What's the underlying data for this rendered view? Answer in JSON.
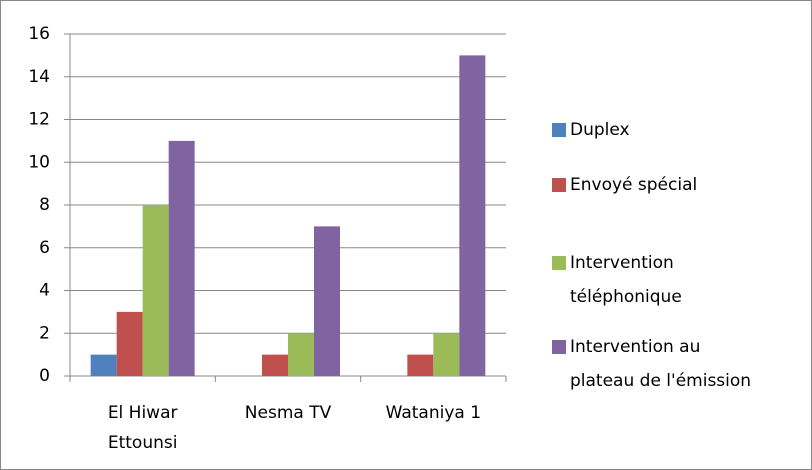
{
  "chart_data": {
    "type": "bar",
    "categories": [
      "El Hiwar Ettounsi",
      "Nesma TV",
      "Wataniya 1"
    ],
    "series": [
      {
        "name": "Duplex",
        "color": "#4f81bd",
        "values": [
          1,
          0,
          0
        ]
      },
      {
        "name": "Envoyé spécial",
        "color": "#c0504d",
        "values": [
          3,
          1,
          1
        ]
      },
      {
        "name": "Intervention téléphonique",
        "color": "#9bbb59",
        "values": [
          8,
          2,
          2
        ]
      },
      {
        "name": "Intervention au plateau de l'émission",
        "color": "#8064a2",
        "values": [
          11,
          7,
          15
        ]
      }
    ],
    "ylim": [
      0,
      16
    ],
    "yticks": [
      0,
      2,
      4,
      6,
      8,
      10,
      12,
      14,
      16
    ],
    "grid": true,
    "legend": "right"
  }
}
